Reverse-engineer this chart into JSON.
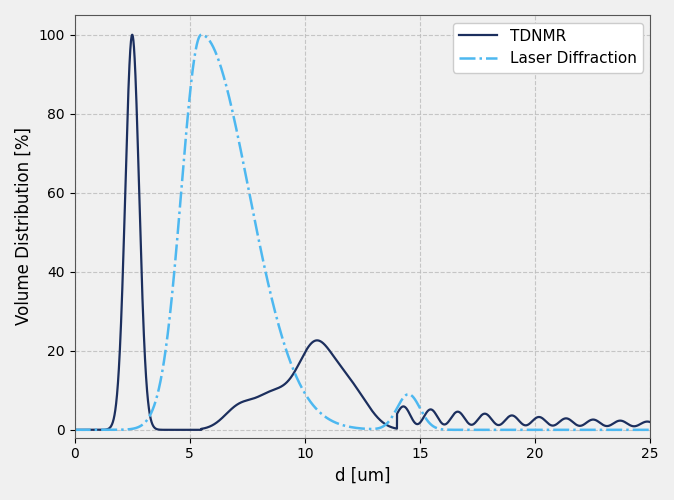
{
  "xlabel": "d [um]",
  "ylabel": "Volume Distribution [%]",
  "xlim": [
    0,
    25
  ],
  "ylim": [
    -2,
    105
  ],
  "yticks": [
    0,
    20,
    40,
    60,
    80,
    100
  ],
  "xticks": [
    0,
    5,
    10,
    15,
    20,
    25
  ],
  "tdnmr_color": "#1c2f5e",
  "laser_color": "#4db8f0",
  "legend_labels": [
    "TDNMR",
    "Laser Diffraction"
  ],
  "background_color": "#f0f0f0",
  "grid_color": "#bbbbbb"
}
